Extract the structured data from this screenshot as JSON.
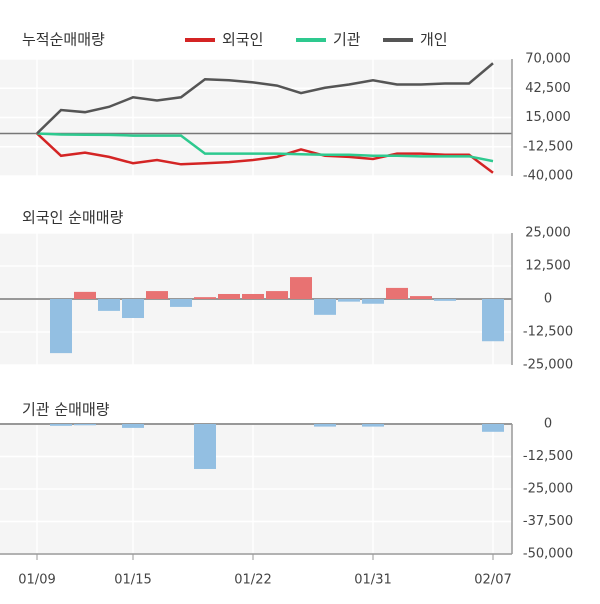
{
  "chart_data": [
    {
      "type": "line",
      "title": "누적순매매량",
      "series": [
        {
          "name": "외국인",
          "color": "#d42424",
          "values": [
            0,
            -21000,
            -18000,
            -22000,
            -28000,
            -25000,
            -29000,
            -28000,
            -27000,
            -25000,
            -22000,
            -15000,
            -21000,
            -22000,
            -24000,
            -19000,
            -19000,
            -20000,
            -20000,
            -37000
          ]
        },
        {
          "name": "기관",
          "color": "#2ec98f",
          "values": [
            0,
            -1000,
            -1200,
            -1300,
            -2000,
            -2000,
            -2000,
            -19000,
            -19000,
            -19000,
            -19000,
            -19500,
            -20000,
            -20000,
            -21000,
            -21000,
            -21500,
            -21500,
            -21500,
            -26000
          ]
        },
        {
          "name": "개인",
          "color": "#555555",
          "values": [
            0,
            22000,
            20000,
            25000,
            34000,
            31000,
            34000,
            51000,
            50000,
            48000,
            45000,
            38000,
            43000,
            46000,
            50000,
            46000,
            46000,
            47000,
            47000,
            66000
          ]
        }
      ],
      "ylim": [
        -40000,
        70000
      ],
      "yticks": [
        {
          "value": 70000,
          "label": "70,000"
        },
        {
          "value": 42500,
          "label": "42,500"
        },
        {
          "value": 15000,
          "label": "15,000"
        },
        {
          "value": -12500,
          "label": "-12,500"
        },
        {
          "value": -40000,
          "label": "-40,000"
        }
      ],
      "grid": true
    },
    {
      "type": "bar",
      "title": "외국인 순매매량",
      "values": [
        0,
        -20500,
        2700,
        -4500,
        -7200,
        3000,
        -3000,
        700,
        1900,
        1900,
        3000,
        8300,
        -6000,
        -1000,
        -1800,
        4200,
        1100,
        -700,
        0,
        -16000
      ],
      "color_positive": "#e87272",
      "color_negative": "#93bfe2",
      "ylim": [
        -25000,
        25000
      ],
      "yticks": [
        {
          "value": 25000,
          "label": "25,000"
        },
        {
          "value": 12500,
          "label": "12,500"
        },
        0,
        {
          "value": -12500,
          "label": "-12,500"
        },
        {
          "value": -25000,
          "label": "-25,000"
        }
      ],
      "grid": true
    },
    {
      "type": "bar",
      "title": "기관 순매매량",
      "categories": [
        "01/09",
        null,
        null,
        null,
        "01/15",
        null,
        null,
        null,
        null,
        "01/22",
        null,
        null,
        null,
        null,
        "01/31",
        null,
        null,
        null,
        null,
        "02/07"
      ],
      "values": [
        0,
        -700,
        -500,
        0,
        -1500,
        0,
        0,
        -17300,
        0,
        0,
        0,
        0,
        -1000,
        0,
        -1000,
        0,
        0,
        0,
        0,
        -3000
      ],
      "color_positive": "#e87272",
      "color_negative": "#93bfe2",
      "ylim": [
        -50000,
        0
      ],
      "yticks": [
        0,
        {
          "value": -12500,
          "label": "-12,500"
        },
        {
          "value": -25000,
          "label": "-25,000"
        },
        {
          "value": -37500,
          "label": "-37,500"
        },
        {
          "value": -50000,
          "label": "-50,000"
        }
      ],
      "grid": true
    }
  ]
}
